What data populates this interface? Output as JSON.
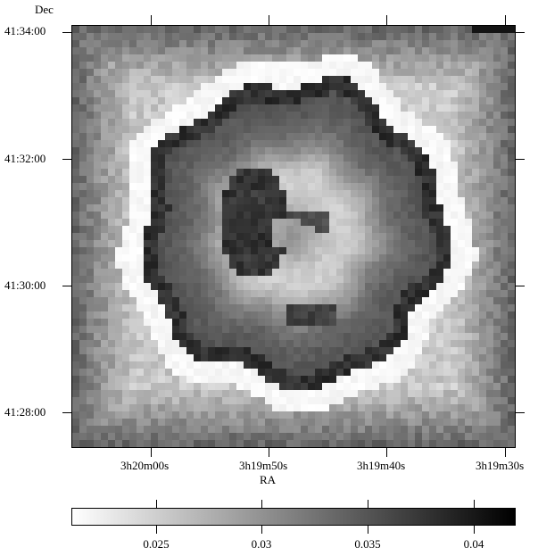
{
  "chart_data": {
    "type": "heatmap",
    "title": "",
    "xlabel": "RA",
    "ylabel": "Dec",
    "x_ticks": [
      "3h20m00s",
      "3h19m50s",
      "3h19m40s",
      "3h19m30s"
    ],
    "y_ticks": [
      "41:34:00",
      "41:32:00",
      "41:30:00",
      "41:28:00"
    ],
    "colorbar": {
      "range": [
        0.021,
        0.042
      ],
      "ticks": [
        "0.025",
        "0.03",
        "0.035",
        "0.04"
      ],
      "tick_values": [
        0.025,
        0.03,
        0.035,
        0.04
      ],
      "colormap": "white-to-black"
    },
    "features": {
      "background": "grey-gradient pixel noise, about 0.028-0.036",
      "bright_ring": "about 0.022",
      "dark_rim": "about 0.040",
      "disk_interior": "smooth grey, lighter toward centre",
      "central_dark_patch": "about 0.039"
    }
  }
}
